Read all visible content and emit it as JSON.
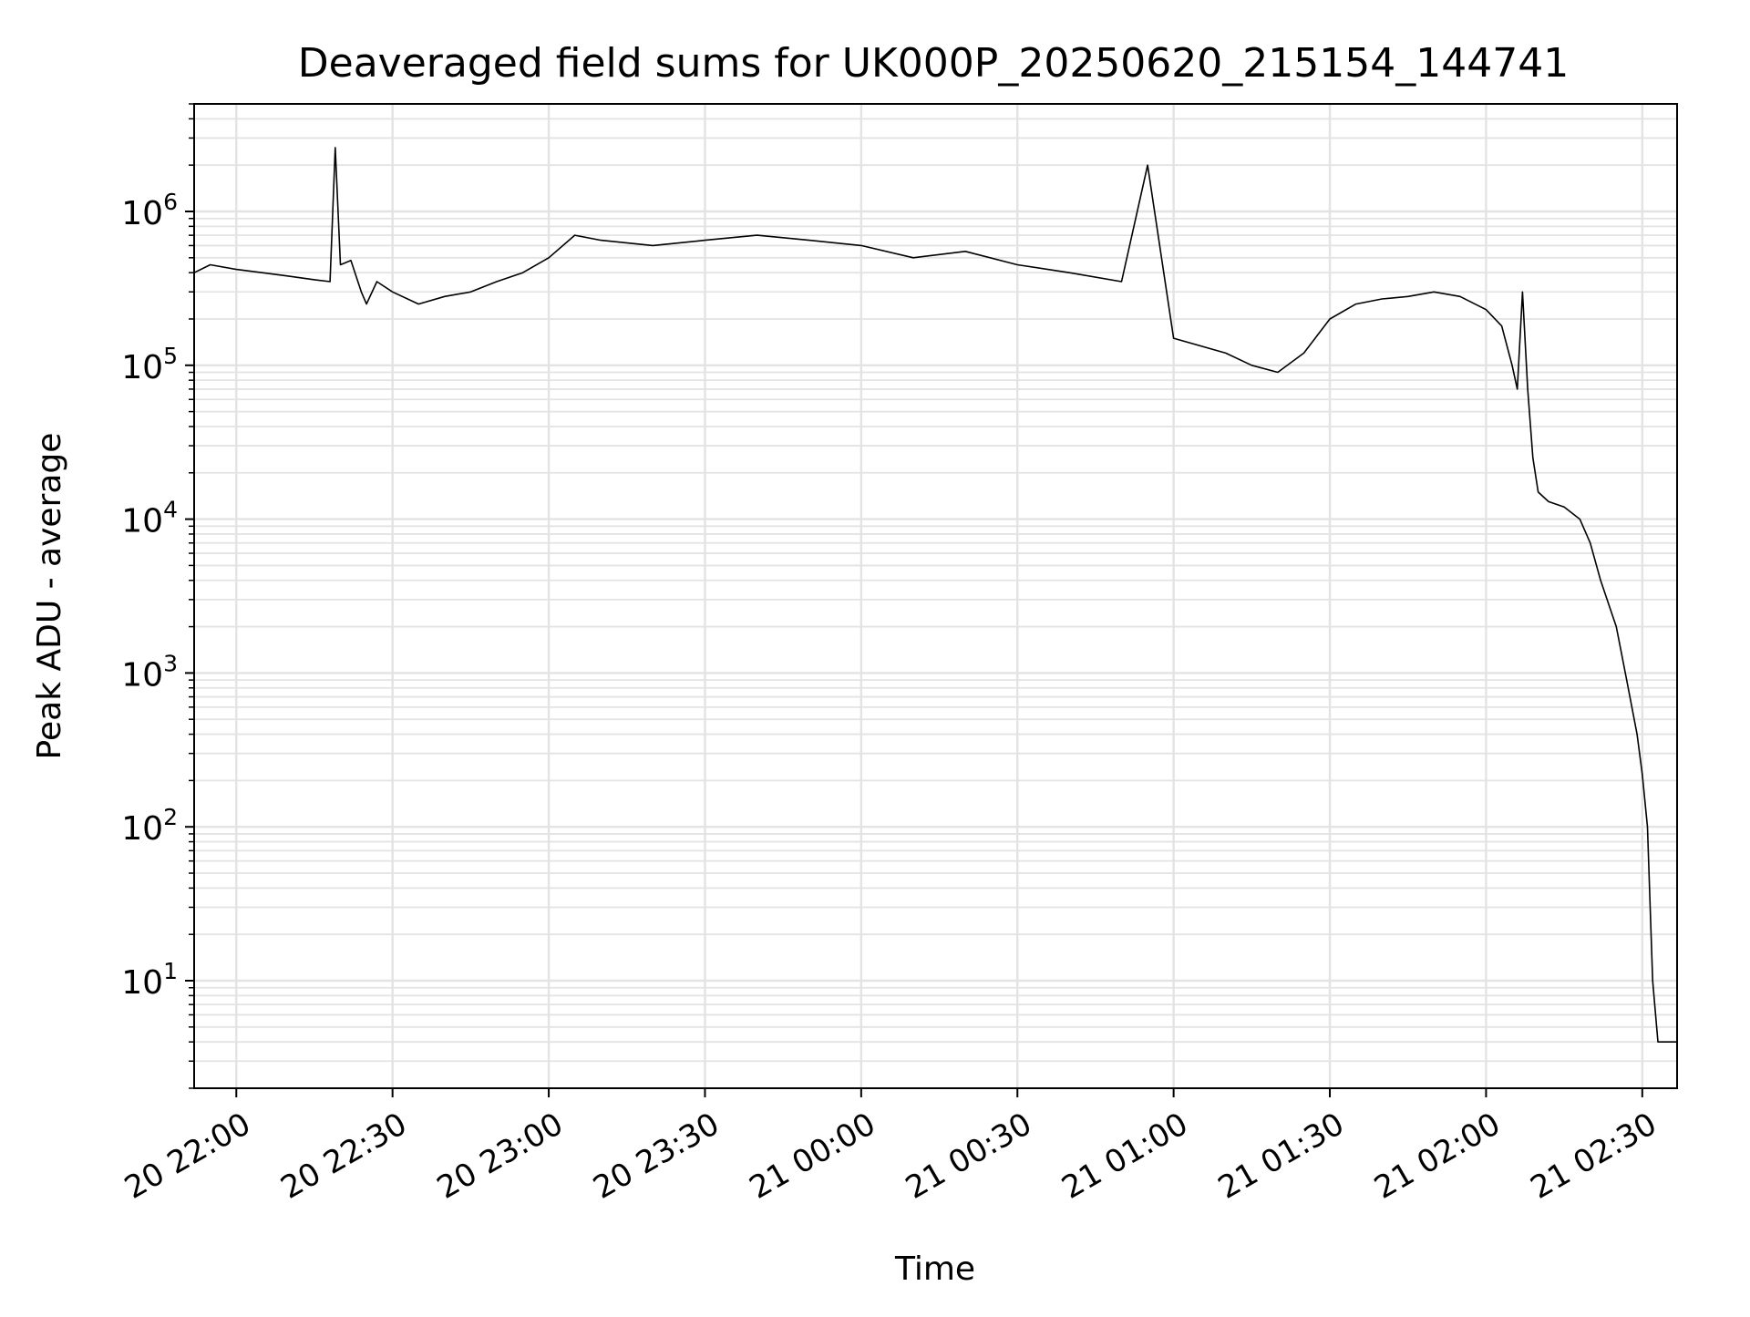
{
  "chart_data": {
    "type": "line",
    "title": "Deaveraged field sums for UK000P_20250620_215154_144741",
    "xlabel": "Time",
    "ylabel": "Peak ADU - average",
    "yscale": "log",
    "ylim": [
      2,
      5000000
    ],
    "xlim": [
      "2025-06-20 21:51:54",
      "2025-06-21 02:36:41"
    ],
    "grid": true,
    "line_color": "#000000",
    "x_ticks": [
      {
        "time": "2025-06-20 22:00",
        "label": "20 22:00"
      },
      {
        "time": "2025-06-20 22:30",
        "label": "20 22:30"
      },
      {
        "time": "2025-06-20 23:00",
        "label": "20 23:00"
      },
      {
        "time": "2025-06-20 23:30",
        "label": "20 23:30"
      },
      {
        "time": "2025-06-21 00:00",
        "label": "21 00:00"
      },
      {
        "time": "2025-06-21 00:30",
        "label": "21 00:30"
      },
      {
        "time": "2025-06-21 01:00",
        "label": "21 01:00"
      },
      {
        "time": "2025-06-21 01:30",
        "label": "21 01:30"
      },
      {
        "time": "2025-06-21 02:00",
        "label": "21 02:00"
      },
      {
        "time": "2025-06-21 02:30",
        "label": "21 02:30"
      }
    ],
    "y_ticks": [
      {
        "value": 10,
        "base": "10",
        "exp": "1"
      },
      {
        "value": 100,
        "base": "10",
        "exp": "2"
      },
      {
        "value": 1000,
        "base": "10",
        "exp": "3"
      },
      {
        "value": 10000,
        "base": "10",
        "exp": "4"
      },
      {
        "value": 100000,
        "base": "10",
        "exp": "5"
      },
      {
        "value": 1000000,
        "base": "10",
        "exp": "6"
      }
    ],
    "series": [
      {
        "x": [
          "2025-06-20 21:51:54",
          "2025-06-20 21:55:00",
          "2025-06-20 22:00:00",
          "2025-06-20 22:05:00",
          "2025-06-20 22:10:00",
          "2025-06-20 22:15:00",
          "2025-06-20 22:18:00",
          "2025-06-20 22:19:00",
          "2025-06-20 22:20:00",
          "2025-06-20 22:22:00",
          "2025-06-20 22:24:00",
          "2025-06-20 22:25:00",
          "2025-06-20 22:27:00",
          "2025-06-20 22:30:00",
          "2025-06-20 22:35:00",
          "2025-06-20 22:40:00",
          "2025-06-20 22:45:00",
          "2025-06-20 22:50:00",
          "2025-06-20 22:55:00",
          "2025-06-20 23:00:00",
          "2025-06-20 23:05:00",
          "2025-06-20 23:10:00",
          "2025-06-20 23:20:00",
          "2025-06-20 23:30:00",
          "2025-06-20 23:40:00",
          "2025-06-20 23:50:00",
          "2025-06-21 00:00:00",
          "2025-06-21 00:10:00",
          "2025-06-21 00:20:00",
          "2025-06-21 00:30:00",
          "2025-06-21 00:40:00",
          "2025-06-21 00:50:00",
          "2025-06-21 00:55:00",
          "2025-06-21 01:00:00",
          "2025-06-21 01:10:00",
          "2025-06-21 01:15:00",
          "2025-06-21 01:20:00",
          "2025-06-21 01:25:00",
          "2025-06-21 01:30:00",
          "2025-06-21 01:35:00",
          "2025-06-21 01:40:00",
          "2025-06-21 01:45:00",
          "2025-06-21 01:50:00",
          "2025-06-21 01:55:00",
          "2025-06-21 02:00:00",
          "2025-06-21 02:03:00",
          "2025-06-21 02:05:00",
          "2025-06-21 02:06:00",
          "2025-06-21 02:07:00",
          "2025-06-21 02:08:00",
          "2025-06-21 02:09:00",
          "2025-06-21 02:10:00",
          "2025-06-21 02:12:00",
          "2025-06-21 02:15:00",
          "2025-06-21 02:18:00",
          "2025-06-21 02:20:00",
          "2025-06-21 02:22:00",
          "2025-06-21 02:25:00",
          "2025-06-21 02:27:00",
          "2025-06-21 02:29:00",
          "2025-06-21 02:30:00",
          "2025-06-21 02:31:00",
          "2025-06-21 02:32:00",
          "2025-06-21 02:33:00",
          "2025-06-21 02:34:00",
          "2025-06-21 02:36:41"
        ],
        "y": [
          400000,
          450000,
          420000,
          400000,
          380000,
          360000,
          350000,
          2600000,
          450000,
          480000,
          300000,
          250000,
          350000,
          300000,
          250000,
          280000,
          300000,
          350000,
          400000,
          500000,
          700000,
          650000,
          600000,
          650000,
          700000,
          650000,
          600000,
          500000,
          550000,
          450000,
          400000,
          350000,
          2000000,
          150000,
          120000,
          100000,
          90000,
          120000,
          200000,
          250000,
          270000,
          280000,
          300000,
          280000,
          230000,
          180000,
          100000,
          70000,
          300000,
          70000,
          25000,
          15000,
          13000,
          12000,
          10000,
          7000,
          4000,
          2000,
          900,
          400,
          220,
          100,
          10,
          4,
          4,
          4
        ]
      }
    ]
  }
}
